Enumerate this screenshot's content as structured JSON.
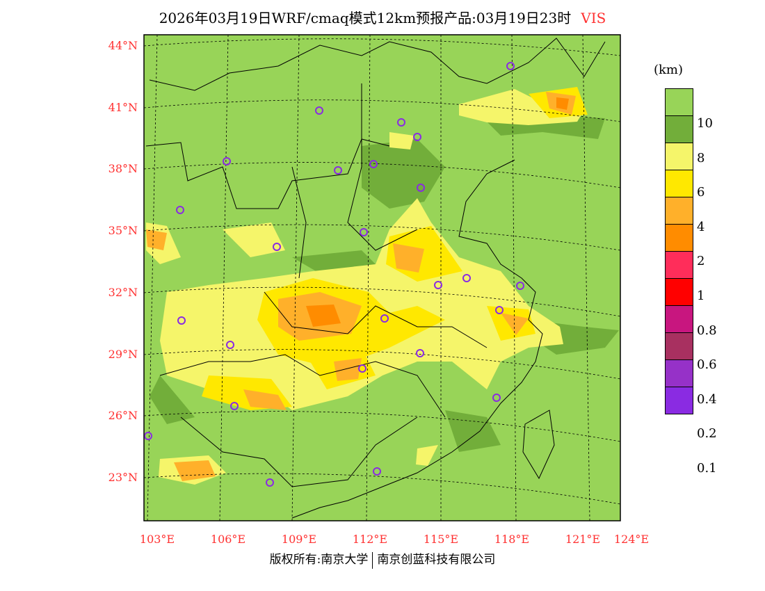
{
  "title": {
    "main": "2026年03月19日WRF/cmaq模式12km预报产品:03月19日23时",
    "variable": "VIS"
  },
  "lat_labels": [
    "44°N",
    "41°N",
    "38°N",
    "35°N",
    "32°N",
    "29°N",
    "26°N",
    "23°N"
  ],
  "lon_labels": [
    "103°E",
    "106°E",
    "109°E",
    "112°E",
    "115°E",
    "118°E",
    "121°E",
    "124°E"
  ],
  "legend": {
    "unit": "(km)",
    "labels": [
      "10",
      "8",
      "6",
      "4",
      "2",
      "1",
      "0.8",
      "0.6",
      "0.4",
      "0.2",
      "0.1"
    ],
    "colors": [
      "#98d458",
      "#72ae3a",
      "#f5f56a",
      "#ffe800",
      "#ffb02a",
      "#ff8c00",
      "#ff2d5a",
      "#ff0000",
      "#c8167f",
      "#a83060",
      "#9631c8",
      "#8a2be2"
    ]
  },
  "credit": {
    "left": "版权所有:南京大学",
    "right": "南京创蓝科技有限公司"
  }
}
